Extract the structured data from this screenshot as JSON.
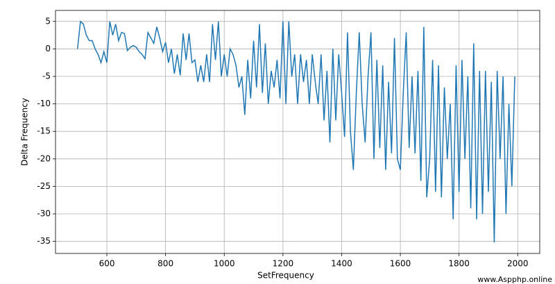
{
  "chart_data": {
    "type": "line",
    "xlabel": "SetFrequency",
    "ylabel": "Delta Frequency",
    "watermark": "www.Aspphp.online",
    "x": [
      500,
      510,
      520,
      530,
      540,
      550,
      560,
      570,
      580,
      590,
      600,
      610,
      620,
      630,
      640,
      650,
      660,
      670,
      680,
      690,
      700,
      710,
      720,
      730,
      740,
      750,
      760,
      770,
      780,
      790,
      800,
      810,
      820,
      830,
      840,
      850,
      860,
      870,
      880,
      890,
      900,
      910,
      920,
      930,
      940,
      950,
      960,
      970,
      980,
      990,
      1000,
      1010,
      1020,
      1030,
      1040,
      1050,
      1060,
      1070,
      1080,
      1090,
      1100,
      1110,
      1120,
      1130,
      1140,
      1150,
      1160,
      1170,
      1180,
      1190,
      1200,
      1210,
      1220,
      1230,
      1240,
      1250,
      1260,
      1270,
      1280,
      1290,
      1300,
      1310,
      1320,
      1330,
      1340,
      1350,
      1360,
      1370,
      1380,
      1390,
      1400,
      1410,
      1420,
      1430,
      1440,
      1450,
      1460,
      1470,
      1480,
      1490,
      1500,
      1510,
      1520,
      1530,
      1540,
      1550,
      1560,
      1570,
      1580,
      1590,
      1600,
      1610,
      1620,
      1630,
      1640,
      1650,
      1660,
      1670,
      1680,
      1690,
      1700,
      1710,
      1720,
      1730,
      1740,
      1750,
      1760,
      1770,
      1780,
      1790,
      1800,
      1810,
      1820,
      1830,
      1840,
      1850,
      1860,
      1870,
      1880,
      1890,
      1900,
      1910,
      1920,
      1930,
      1940,
      1950,
      1960,
      1970,
      1980,
      1990
    ],
    "series": [
      {
        "name": "Delta Frequency",
        "color": "#1f77b4",
        "values": [
          0,
          5,
          4.5,
          2.5,
          1.5,
          1.5,
          0,
          -1,
          -2.5,
          -0.5,
          -2.5,
          5,
          2.5,
          4.5,
          1.5,
          3,
          2.8,
          -0.3,
          0.3,
          0.6,
          0.3,
          -0.5,
          -1,
          -1.8,
          3,
          2,
          1,
          4,
          2,
          -0.5,
          1.2,
          -2.5,
          0,
          -4.5,
          -1,
          -4.8,
          2.8,
          -2,
          2.8,
          -2.5,
          -2,
          -6,
          -3,
          -6,
          -1,
          -6,
          4.5,
          -2,
          5,
          -5,
          -1,
          -5,
          0,
          -1,
          -3,
          -7,
          -5,
          -12,
          -2,
          -9,
          1.5,
          -7,
          4.5,
          -8,
          1,
          -10,
          -4,
          -7,
          -2,
          -9,
          5,
          -10,
          5,
          -5,
          -1,
          -10,
          -1,
          -6,
          -2,
          -10,
          -1,
          -6,
          -10,
          -1,
          -13,
          -4,
          -17,
          0,
          -13,
          -1,
          -8,
          -16,
          3,
          -15,
          -22,
          -8,
          3,
          -10,
          -17,
          -5,
          3,
          -20,
          -2,
          -18,
          -3,
          -22,
          -6,
          -19,
          2,
          -20,
          -22,
          -8,
          3,
          -18,
          -5,
          -19,
          -4,
          -24,
          4,
          -27,
          -20,
          -2,
          -26,
          -3,
          -27,
          -7,
          -20,
          -10,
          -31,
          -3,
          -26,
          -2,
          -20,
          -5,
          -29,
          1,
          -31,
          -4,
          -30,
          -4,
          -26,
          -6,
          -35.2,
          -4,
          -20,
          -5,
          -30,
          -10,
          -25,
          -5
        ]
      }
    ],
    "xlim": [
      425,
      2075
    ],
    "ylim": [
      -37.2,
      7.0
    ],
    "xticks": [
      600,
      800,
      1000,
      1200,
      1400,
      1600,
      1800,
      2000
    ],
    "yticks": [
      -35,
      -30,
      -25,
      -20,
      -15,
      -10,
      -5,
      0,
      5
    ],
    "grid": true
  }
}
